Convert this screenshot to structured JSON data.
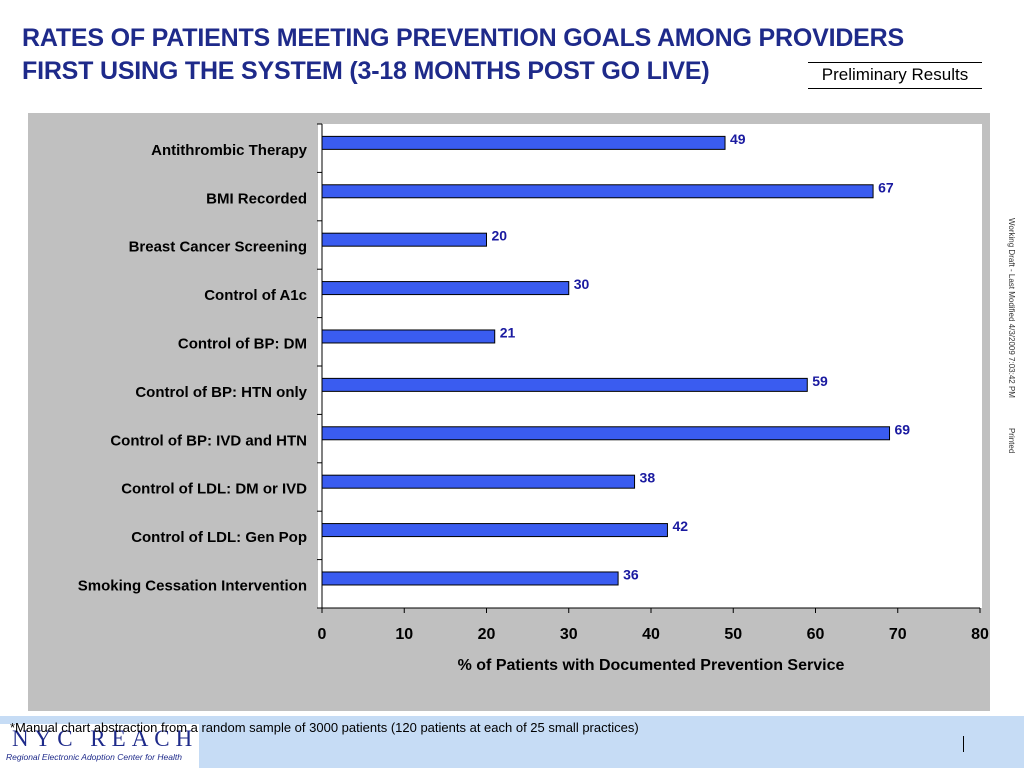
{
  "header": {
    "title_line1": "RATES OF PATIENTS MEETING PREVENTION GOALS AMONG PROVIDERS",
    "title_line2": "FIRST USING THE SYSTEM (3-18 MONTHS POST GO LIVE)",
    "badge": "Preliminary Results"
  },
  "side_note": {
    "draft": "Working Draft - Last Modified 4/3/2009 7:03:42 PM",
    "printed": "Printed"
  },
  "footer": {
    "note": "*Manual chart abstraction from a random sample of 3000 patients (120 patients at each of 25 small practices)",
    "logo": "NYC REACH",
    "logo_tagline": "Regional Electronic Adoption Center for Health"
  },
  "colors": {
    "bar": "#3a5cf0",
    "label": "#1a1aa0",
    "title": "#1e2a8a"
  },
  "chart_data": {
    "type": "bar",
    "orientation": "horizontal",
    "categories": [
      "Antithrombic Therapy",
      "BMI Recorded",
      "Breast Cancer Screening",
      "Control of A1c",
      "Control of BP: DM",
      "Control of BP: HTN only",
      "Control of BP: IVD and HTN",
      "Control of LDL: DM or IVD",
      "Control of LDL: Gen Pop",
      "Smoking Cessation Intervention"
    ],
    "values": [
      49,
      67,
      20,
      30,
      21,
      59,
      69,
      38,
      42,
      36
    ],
    "xlabel": "% of Patients with Documented Prevention Service",
    "xlim": [
      0,
      80
    ],
    "xticks": [
      0,
      10,
      20,
      30,
      40,
      50,
      60,
      70,
      80
    ],
    "grid": false,
    "legend": "none"
  }
}
